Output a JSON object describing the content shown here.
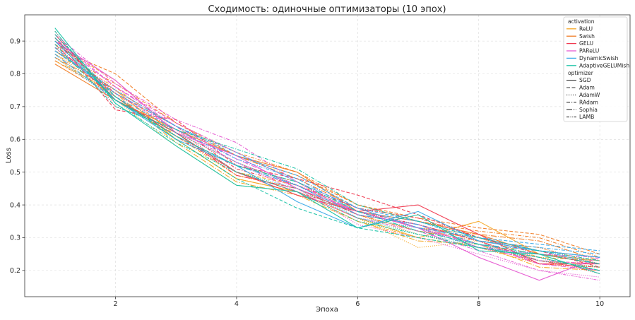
{
  "chart_data": {
    "type": "line",
    "title": "Сходимость: одиночные оптимизаторы (10 эпох)",
    "xlabel": "Эпоха",
    "ylabel": "Loss",
    "xlim": [
      0.5,
      10.5
    ],
    "ylim": [
      0.12,
      0.98
    ],
    "xticks": [
      2,
      4,
      6,
      8,
      10
    ],
    "yticks": [
      0.2,
      0.3,
      0.4,
      0.5,
      0.6,
      0.7,
      0.8,
      0.9
    ],
    "grid": true,
    "legend_position": "top-right",
    "legend": {
      "hue_title": "activation",
      "style_title": "optimizer",
      "activations": [
        {
          "label": "ReLU",
          "color": "#f5a623"
        },
        {
          "label": "Swish",
          "color": "#f07d26"
        },
        {
          "label": "GELU",
          "color": "#f0394f"
        },
        {
          "label": "PAReLU",
          "color": "#e65bd2"
        },
        {
          "label": "DynamicSwish",
          "color": "#3aa9e8"
        },
        {
          "label": "AdaptiveGELUMish",
          "color": "#19c3a6"
        }
      ],
      "optimizers": [
        {
          "label": "SGD",
          "dash": ""
        },
        {
          "label": "Adam",
          "dash": "5,2.5"
        },
        {
          "label": "AdamW",
          "dash": "1.2,1.8"
        },
        {
          "label": "RAdam",
          "dash": "5,2,1.2,2"
        },
        {
          "label": "Sophia",
          "dash": "8,2,1.2,2"
        },
        {
          "label": "LAMB",
          "dash": "4,1.5,1.2,1.5,1.2,1.5"
        }
      ]
    },
    "x": [
      1,
      2,
      3,
      4,
      5,
      6,
      7,
      8,
      9,
      10
    ],
    "series": [
      {
        "activation": "ReLU",
        "optimizer": "SGD",
        "values": [
          0.87,
          0.75,
          0.6,
          0.48,
          0.44,
          0.36,
          0.3,
          0.35,
          0.25,
          0.23
        ]
      },
      {
        "activation": "ReLU",
        "optimizer": "Adam",
        "values": [
          0.89,
          0.78,
          0.62,
          0.5,
          0.46,
          0.38,
          0.33,
          0.3,
          0.26,
          0.24
        ]
      },
      {
        "activation": "ReLU",
        "optimizer": "AdamW",
        "values": [
          0.88,
          0.72,
          0.58,
          0.46,
          0.44,
          0.36,
          0.27,
          0.29,
          0.23,
          0.22
        ]
      },
      {
        "activation": "ReLU",
        "optimizer": "RAdam",
        "values": [
          0.86,
          0.76,
          0.61,
          0.49,
          0.45,
          0.37,
          0.32,
          0.3,
          0.24,
          0.23
        ]
      },
      {
        "activation": "ReLU",
        "optimizer": "Sophia",
        "values": [
          0.84,
          0.74,
          0.59,
          0.47,
          0.43,
          0.35,
          0.29,
          0.28,
          0.21,
          0.2
        ]
      },
      {
        "activation": "ReLU",
        "optimizer": "LAMB",
        "values": [
          0.85,
          0.73,
          0.6,
          0.48,
          0.44,
          0.35,
          0.3,
          0.27,
          0.22,
          0.21
        ]
      },
      {
        "activation": "Swish",
        "optimizer": "SGD",
        "values": [
          0.83,
          0.72,
          0.63,
          0.55,
          0.5,
          0.38,
          0.35,
          0.31,
          0.25,
          0.22
        ]
      },
      {
        "activation": "Swish",
        "optimizer": "Adam",
        "values": [
          0.88,
          0.8,
          0.65,
          0.55,
          0.49,
          0.4,
          0.36,
          0.33,
          0.31,
          0.25
        ]
      },
      {
        "activation": "Swish",
        "optimizer": "AdamW",
        "values": [
          0.86,
          0.74,
          0.62,
          0.53,
          0.46,
          0.37,
          0.31,
          0.27,
          0.23,
          0.21
        ]
      },
      {
        "activation": "Swish",
        "optimizer": "RAdam",
        "values": [
          0.87,
          0.77,
          0.65,
          0.56,
          0.5,
          0.4,
          0.35,
          0.32,
          0.3,
          0.24
        ]
      },
      {
        "activation": "Swish",
        "optimizer": "Sophia",
        "values": [
          0.85,
          0.75,
          0.64,
          0.55,
          0.48,
          0.39,
          0.33,
          0.31,
          0.29,
          0.23
        ]
      },
      {
        "activation": "Swish",
        "optimizer": "LAMB",
        "values": [
          0.84,
          0.73,
          0.61,
          0.52,
          0.47,
          0.37,
          0.32,
          0.29,
          0.27,
          0.22
        ]
      },
      {
        "activation": "GELU",
        "optimizer": "SGD",
        "values": [
          0.92,
          0.72,
          0.62,
          0.5,
          0.43,
          0.38,
          0.4,
          0.31,
          0.22,
          0.22
        ]
      },
      {
        "activation": "GELU",
        "optimizer": "Adam",
        "values": [
          0.91,
          0.69,
          0.66,
          0.52,
          0.48,
          0.43,
          0.37,
          0.3,
          0.26,
          0.21
        ]
      },
      {
        "activation": "GELU",
        "optimizer": "AdamW",
        "values": [
          0.93,
          0.7,
          0.63,
          0.5,
          0.44,
          0.36,
          0.33,
          0.28,
          0.24,
          0.19
        ]
      },
      {
        "activation": "GELU",
        "optimizer": "RAdam",
        "values": [
          0.9,
          0.74,
          0.64,
          0.51,
          0.46,
          0.39,
          0.36,
          0.3,
          0.25,
          0.22
        ]
      },
      {
        "activation": "GELU",
        "optimizer": "Sophia",
        "values": [
          0.89,
          0.72,
          0.62,
          0.49,
          0.45,
          0.37,
          0.34,
          0.29,
          0.23,
          0.2
        ]
      },
      {
        "activation": "GELU",
        "optimizer": "LAMB",
        "values": [
          0.91,
          0.73,
          0.61,
          0.5,
          0.44,
          0.38,
          0.34,
          0.29,
          0.22,
          0.21
        ]
      },
      {
        "activation": "PAReLU",
        "optimizer": "SGD",
        "values": [
          0.9,
          0.78,
          0.62,
          0.55,
          0.45,
          0.38,
          0.33,
          0.24,
          0.17,
          0.24
        ]
      },
      {
        "activation": "PAReLU",
        "optimizer": "Adam",
        "values": [
          0.91,
          0.76,
          0.65,
          0.56,
          0.47,
          0.37,
          0.34,
          0.27,
          0.23,
          0.22
        ]
      },
      {
        "activation": "PAReLU",
        "optimizer": "AdamW",
        "values": [
          0.89,
          0.75,
          0.63,
          0.53,
          0.45,
          0.34,
          0.3,
          0.25,
          0.2,
          0.18
        ]
      },
      {
        "activation": "PAReLU",
        "optimizer": "RAdam",
        "values": [
          0.92,
          0.77,
          0.66,
          0.59,
          0.47,
          0.39,
          0.33,
          0.27,
          0.25,
          0.24
        ]
      },
      {
        "activation": "PAReLU",
        "optimizer": "Sophia",
        "values": [
          0.9,
          0.76,
          0.64,
          0.54,
          0.46,
          0.38,
          0.33,
          0.28,
          0.22,
          0.2
        ]
      },
      {
        "activation": "PAReLU",
        "optimizer": "LAMB",
        "values": [
          0.88,
          0.74,
          0.63,
          0.53,
          0.44,
          0.36,
          0.32,
          0.26,
          0.2,
          0.17
        ]
      },
      {
        "activation": "DynamicSwish",
        "optimizer": "SGD",
        "values": [
          0.9,
          0.72,
          0.6,
          0.52,
          0.41,
          0.33,
          0.38,
          0.29,
          0.26,
          0.24
        ]
      },
      {
        "activation": "DynamicSwish",
        "optimizer": "Adam",
        "values": [
          0.87,
          0.74,
          0.64,
          0.55,
          0.49,
          0.39,
          0.35,
          0.3,
          0.28,
          0.26
        ]
      },
      {
        "activation": "DynamicSwish",
        "optimizer": "AdamW",
        "values": [
          0.85,
          0.72,
          0.62,
          0.53,
          0.46,
          0.36,
          0.33,
          0.27,
          0.25,
          0.23
        ]
      },
      {
        "activation": "DynamicSwish",
        "optimizer": "RAdam",
        "values": [
          0.88,
          0.73,
          0.63,
          0.54,
          0.48,
          0.38,
          0.35,
          0.29,
          0.27,
          0.25
        ]
      },
      {
        "activation": "DynamicSwish",
        "optimizer": "Sophia",
        "values": [
          0.86,
          0.72,
          0.61,
          0.52,
          0.46,
          0.37,
          0.34,
          0.28,
          0.26,
          0.24
        ]
      },
      {
        "activation": "DynamicSwish",
        "optimizer": "LAMB",
        "values": [
          0.87,
          0.75,
          0.64,
          0.56,
          0.47,
          0.39,
          0.33,
          0.3,
          0.26,
          0.22
        ]
      },
      {
        "activation": "AdaptiveGELUMish",
        "optimizer": "SGD",
        "values": [
          0.94,
          0.71,
          0.58,
          0.46,
          0.44,
          0.33,
          0.37,
          0.26,
          0.25,
          0.19
        ]
      },
      {
        "activation": "AdaptiveGELUMish",
        "optimizer": "Adam",
        "values": [
          0.92,
          0.73,
          0.6,
          0.48,
          0.39,
          0.33,
          0.3,
          0.27,
          0.24,
          0.2
        ]
      },
      {
        "activation": "AdaptiveGELUMish",
        "optimizer": "AdamW",
        "values": [
          0.9,
          0.72,
          0.62,
          0.5,
          0.45,
          0.36,
          0.31,
          0.28,
          0.23,
          0.21
        ]
      },
      {
        "activation": "AdaptiveGELUMish",
        "optimizer": "RAdam",
        "values": [
          0.89,
          0.7,
          0.63,
          0.57,
          0.51,
          0.4,
          0.35,
          0.3,
          0.26,
          0.23
        ]
      },
      {
        "activation": "AdaptiveGELUMish",
        "optimizer": "Sophia",
        "values": [
          0.91,
          0.72,
          0.61,
          0.52,
          0.47,
          0.38,
          0.32,
          0.28,
          0.25,
          0.22
        ]
      },
      {
        "activation": "AdaptiveGELUMish",
        "optimizer": "LAMB",
        "values": [
          0.93,
          0.71,
          0.59,
          0.5,
          0.44,
          0.35,
          0.31,
          0.27,
          0.24,
          0.2
        ]
      }
    ]
  }
}
